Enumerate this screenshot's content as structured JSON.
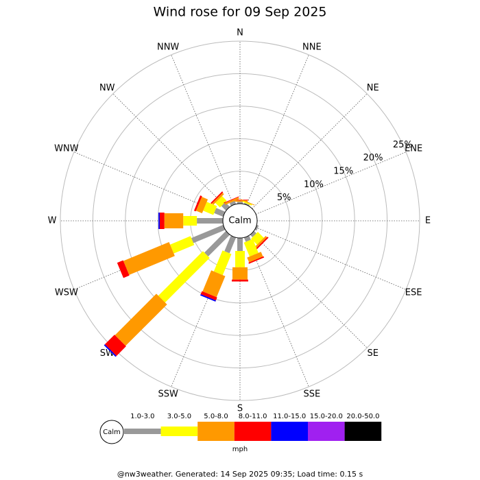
{
  "chart_data": {
    "type": "wind_rose",
    "title": "Wind rose for 09 Sep 2025",
    "directions": [
      "N",
      "NNE",
      "NE",
      "ENE",
      "E",
      "ESE",
      "SE",
      "SSE",
      "S",
      "SSW",
      "SW",
      "WSW",
      "W",
      "WNW",
      "NW",
      "NNW"
    ],
    "center_label": "Calm",
    "rlim": [
      0,
      25
    ],
    "rticks": [
      {
        "value": 5,
        "label": "5%"
      },
      {
        "value": 10,
        "label": "10%"
      },
      {
        "value": 15,
        "label": "15%"
      },
      {
        "value": 20,
        "label": "20%"
      },
      {
        "value": 25,
        "label": "25%"
      }
    ],
    "unit": "mph",
    "series": [
      {
        "name": "1.0-3.0",
        "color": "#999999",
        "values": [
          0.3,
          0.2,
          0,
          0,
          0,
          0.3,
          0.5,
          0.7,
          2.0,
          2.6,
          4.7,
          5.3,
          4.0,
          1.5,
          1.0,
          0.5
        ]
      },
      {
        "name": "3.0-5.0",
        "color": "#ffff00",
        "values": [
          0,
          0.2,
          0,
          0,
          0,
          0,
          1.3,
          2.3,
          2.5,
          3.5,
          9.7,
          3.4,
          2.1,
          1.7,
          1.0,
          0
        ]
      },
      {
        "name": "5.0-8.0",
        "color": "#ff9900",
        "values": [
          0.2,
          0.1,
          0,
          0,
          0,
          0,
          0.3,
          0.8,
          1.9,
          3.5,
          9.0,
          7.6,
          2.9,
          1.0,
          0.3,
          0.3
        ]
      },
      {
        "name": "8.0-11.0",
        "color": "#ff0000",
        "values": [
          0.1,
          0,
          0,
          0,
          0,
          0,
          0.2,
          0.2,
          0.3,
          0.5,
          2.1,
          1.0,
          0.7,
          0.3,
          0.2,
          0.1
        ]
      },
      {
        "name": "11.0-15.0",
        "color": "#0000ff",
        "values": [
          0,
          0,
          0,
          0,
          0,
          0,
          0,
          0,
          0,
          0.2,
          0.2,
          0,
          0.2,
          0,
          0,
          0
        ]
      },
      {
        "name": "15.0-20.0",
        "color": "#a020f0",
        "values": [
          0,
          0,
          0,
          0,
          0,
          0,
          0,
          0,
          0,
          0,
          0,
          0,
          0,
          0,
          0,
          0
        ]
      },
      {
        "name": "20.0-50.0",
        "color": "#000000",
        "values": [
          0,
          0,
          0,
          0,
          0,
          0,
          0,
          0,
          0,
          0,
          0,
          0,
          0,
          0,
          0,
          0
        ]
      }
    ]
  },
  "footer": "@nw3weather. Generated: 14 Sep 2025 09:35; Load time: 0.15 s"
}
